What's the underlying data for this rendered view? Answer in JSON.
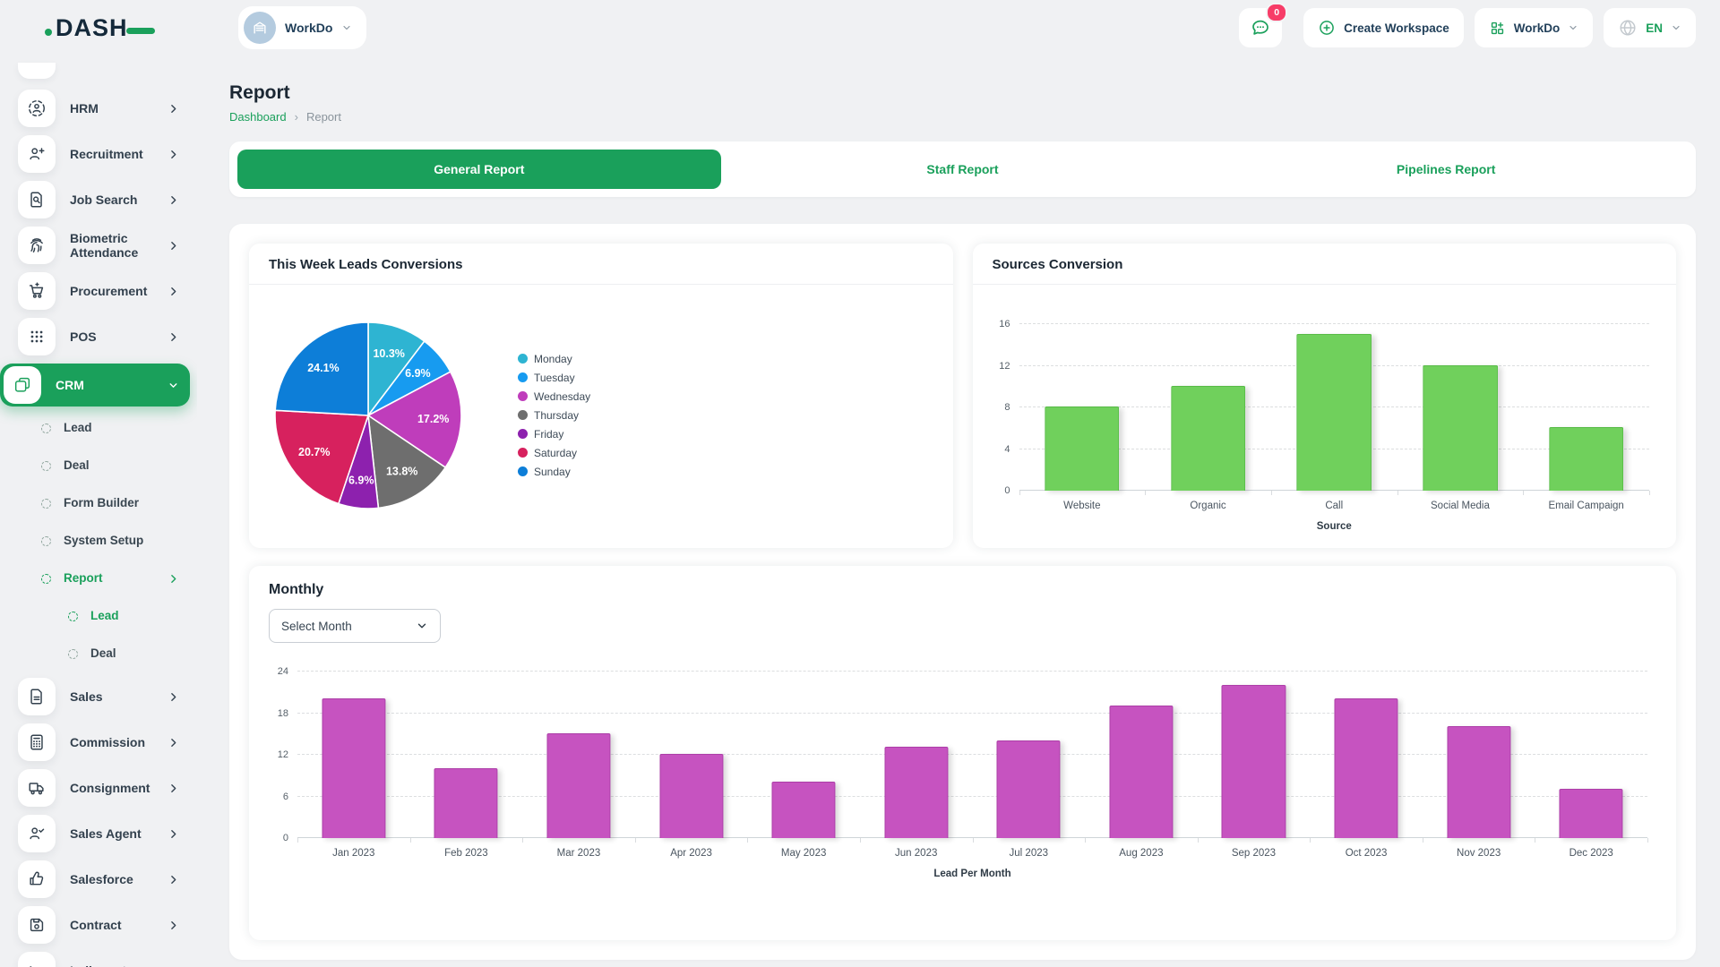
{
  "theme": {
    "accent_green": "#1aa05b",
    "badge_red": "#f73d68",
    "page_bg": "#f0f1f3"
  },
  "header": {
    "logo_text": "DASH",
    "workspace_name": "WorkDo",
    "messages_badge": "0",
    "create_workspace_label": "Create Workspace",
    "workspace_menu_label": "WorkDo",
    "language": "EN"
  },
  "sidebar": {
    "items": [
      {
        "label": "HRM",
        "icon": "hrm-icon",
        "level": 0,
        "chevron": "right"
      },
      {
        "label": "Recruitment",
        "icon": "recruitment-icon",
        "level": 0,
        "chevron": "right"
      },
      {
        "label": "Job Search",
        "icon": "job-search-icon",
        "level": 0,
        "chevron": "right"
      },
      {
        "label": "Biometric Attendance",
        "icon": "biometric-icon",
        "level": 0,
        "chevron": "right"
      },
      {
        "label": "Procurement",
        "icon": "procurement-icon",
        "level": 0,
        "chevron": "right"
      },
      {
        "label": "POS",
        "icon": "pos-icon",
        "level": 0,
        "chevron": "right"
      },
      {
        "label": "CRM",
        "icon": "crm-icon",
        "level": 0,
        "chevron": "down",
        "active": true
      },
      {
        "label": "Lead",
        "level": 1
      },
      {
        "label": "Deal",
        "level": 1
      },
      {
        "label": "Form Builder",
        "level": 1
      },
      {
        "label": "System Setup",
        "level": 1
      },
      {
        "label": "Report",
        "level": 1,
        "chevron": "right",
        "green": true
      },
      {
        "label": "Lead",
        "level": 2,
        "green": true
      },
      {
        "label": "Deal",
        "level": 2
      },
      {
        "label": "Sales",
        "icon": "sales-icon",
        "level": 0,
        "chevron": "right"
      },
      {
        "label": "Commission",
        "icon": "commission-icon",
        "level": 0,
        "chevron": "right"
      },
      {
        "label": "Consignment",
        "icon": "consignment-icon",
        "level": 0,
        "chevron": "right"
      },
      {
        "label": "Sales Agent",
        "icon": "sales-agent-icon",
        "level": 0,
        "chevron": "right"
      },
      {
        "label": "Salesforce",
        "icon": "salesforce-icon",
        "level": 0,
        "chevron": "right"
      },
      {
        "label": "Contract",
        "icon": "contract-icon",
        "level": 0,
        "chevron": "right"
      },
      {
        "label": "Indiamart",
        "icon": "indiamart-icon",
        "level": 0
      }
    ]
  },
  "page": {
    "title": "Report",
    "breadcrumb": [
      "Dashboard",
      "Report"
    ]
  },
  "tabs": [
    {
      "label": "General Report",
      "active": true
    },
    {
      "label": "Staff Report",
      "active": false
    },
    {
      "label": "Pipelines Report",
      "active": false
    }
  ],
  "monthly": {
    "title": "Monthly",
    "select_placeholder": "Select Month"
  },
  "chart_data": [
    {
      "type": "pie",
      "title": "This Week Leads Conversions",
      "labels": [
        "Monday",
        "Tuesday",
        "Wednesday",
        "Thursday",
        "Friday",
        "Saturday",
        "Sunday"
      ],
      "values": [
        10.3,
        6.9,
        17.2,
        13.8,
        6.9,
        20.7,
        24.1
      ],
      "slice_labels": [
        "10.3%",
        "6.9%",
        "17.2%",
        "13.8%",
        "6.9%",
        "20.7%",
        "24.1%"
      ],
      "colors": [
        "#2eb4d2",
        "#179bf0",
        "#bf3dbb",
        "#6e6e6e",
        "#8d21ae",
        "#d7215e",
        "#0d7ed8"
      ],
      "legend_position": "right",
      "start_angle_deg": -90,
      "clockwise": true
    },
    {
      "type": "bar",
      "title": "Sources Conversion",
      "categories": [
        "Website",
        "Organic",
        "Call",
        "Social Media",
        "Email Campaign"
      ],
      "values": [
        8,
        10,
        15,
        12,
        6
      ],
      "xlabel": "Source",
      "ylim": [
        0,
        16
      ],
      "yticks": [
        0,
        4,
        8,
        12,
        16
      ],
      "grid": "dashed",
      "bar_color": "#70d05c",
      "bar_border": "#58bb47",
      "bar_frac": 0.58
    },
    {
      "type": "bar",
      "title": "Monthly",
      "categories": [
        "Jan 2023",
        "Feb 2023",
        "Mar 2023",
        "Apr 2023",
        "May 2023",
        "Jun 2023",
        "Jul 2023",
        "Aug 2023",
        "Sep 2023",
        "Oct 2023",
        "Nov 2023",
        "Dec 2023"
      ],
      "values": [
        20,
        10,
        15,
        12,
        8,
        13,
        14,
        19,
        22,
        20,
        16,
        7
      ],
      "xlabel": "Lead Per Month",
      "ylim": [
        0,
        24
      ],
      "yticks": [
        0,
        6,
        12,
        18,
        24
      ],
      "grid": "dashed",
      "bar_color": "#c653c0",
      "bar_border": "#ad3ea8",
      "bar_frac": 0.55
    }
  ]
}
